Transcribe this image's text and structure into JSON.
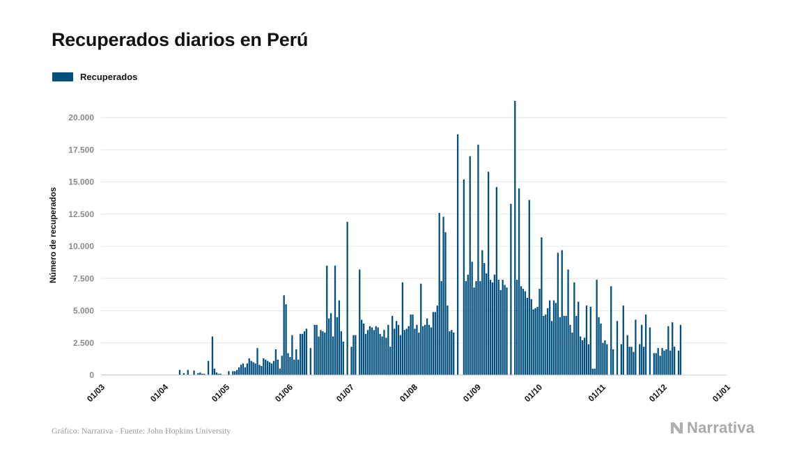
{
  "title": "Recuperados diarios en Perú",
  "source": "Gráfico: Narrativa - Fuente: John Hopkins University",
  "brand": "Narrativa",
  "colors": {
    "bar": "#004f7c",
    "grid": "#e6e6e6",
    "tick": "#8a8a8a"
  },
  "chart_data": {
    "type": "bar",
    "title": "Recuperados diarios en Perú",
    "ylabel": "Número de recuperados",
    "xlabel": "",
    "legend": {
      "position": "top-left",
      "entries": [
        "Recuperados"
      ]
    },
    "grid": true,
    "ylim": [
      0,
      22000
    ],
    "yticks": [
      0,
      2500,
      5000,
      7500,
      10000,
      12500,
      15000,
      17500,
      20000
    ],
    "ytick_labels": [
      "0",
      "2.500",
      "5.000",
      "7.500",
      "10.000",
      "12.500",
      "15.000",
      "17.500",
      "20.000"
    ],
    "xticks": [
      {
        "label": "01/03",
        "day": 0
      },
      {
        "label": "01/04",
        "day": 31
      },
      {
        "label": "01/05",
        "day": 61
      },
      {
        "label": "01/06",
        "day": 92
      },
      {
        "label": "01/07",
        "day": 122
      },
      {
        "label": "01/08",
        "day": 153
      },
      {
        "label": "01/09",
        "day": 184
      },
      {
        "label": "01/10",
        "day": 214
      },
      {
        "label": "01/11",
        "day": 245
      },
      {
        "label": "01/12",
        "day": 275
      },
      {
        "label": "01/01",
        "day": 306
      }
    ],
    "start_date": "2020-03-01",
    "series": [
      {
        "name": "Recuperados",
        "values": [
          0,
          0,
          0,
          0,
          0,
          0,
          0,
          0,
          0,
          0,
          0,
          0,
          0,
          0,
          0,
          0,
          0,
          0,
          0,
          0,
          0,
          0,
          0,
          0,
          0,
          0,
          0,
          0,
          0,
          0,
          0,
          0,
          0,
          0,
          0,
          0,
          0,
          0,
          400,
          0,
          150,
          0,
          400,
          0,
          0,
          350,
          0,
          150,
          200,
          100,
          100,
          0,
          1100,
          0,
          3000,
          500,
          200,
          100,
          100,
          0,
          0,
          0,
          300,
          0,
          300,
          300,
          400,
          600,
          800,
          900,
          600,
          900,
          1300,
          1100,
          1000,
          900,
          2100,
          800,
          700,
          1300,
          1200,
          1100,
          1000,
          900,
          1100,
          2000,
          1200,
          500,
          1500,
          6200,
          5500,
          1700,
          1400,
          3100,
          1200,
          2000,
          1200,
          3200,
          3200,
          3400,
          3600,
          0,
          2100,
          0,
          3900,
          3900,
          3000,
          3500,
          3400,
          3300,
          8500,
          4400,
          4800,
          3000,
          8500,
          4500,
          5800,
          3400,
          2600,
          0,
          11900,
          0,
          2200,
          3100,
          3100,
          0,
          8200,
          4300,
          4000,
          3200,
          3500,
          3800,
          3700,
          3500,
          3800,
          3700,
          3200,
          3000,
          3500,
          2900,
          3900,
          2200,
          4600,
          3600,
          4200,
          3900,
          3100,
          7200,
          3500,
          3600,
          3800,
          4700,
          4700,
          3600,
          3900,
          3300,
          7100,
          3800,
          3900,
          4400,
          3900,
          3700,
          4900,
          4900,
          5400,
          12600,
          7300,
          12300,
          11100,
          5400,
          3400,
          3500,
          3300,
          0,
          18700,
          0,
          0,
          15200,
          7300,
          7800,
          17000,
          8800,
          6800,
          7300,
          17900,
          7300,
          9700,
          8700,
          7900,
          15800,
          7400,
          7200,
          7800,
          14600,
          7400,
          6600,
          7400,
          7000,
          6800,
          0,
          13300,
          0,
          21300,
          7400,
          14500,
          6900,
          6700,
          6500,
          6000,
          13600,
          5900,
          5100,
          5200,
          5300,
          6700,
          10700,
          4600,
          4700,
          5200,
          5800,
          4200,
          5800,
          5600,
          9500,
          4500,
          9700,
          4600,
          4600,
          8200,
          3900,
          3300,
          7200,
          4600,
          5700,
          3000,
          2700,
          2900,
          5400,
          2400,
          5300,
          500,
          500,
          7400,
          4500,
          4000,
          2500,
          2700,
          2400,
          0,
          6900,
          2000,
          0,
          4200,
          0,
          2400,
          5400,
          0,
          3100,
          2200,
          2200,
          1800,
          4300,
          0,
          2400,
          3900,
          2200,
          4700,
          0,
          3700,
          0,
          1700,
          1700,
          2100,
          1500,
          2100,
          1900,
          2000,
          3800,
          1900,
          4100,
          2200,
          0,
          1900,
          3900
        ]
      }
    ]
  }
}
